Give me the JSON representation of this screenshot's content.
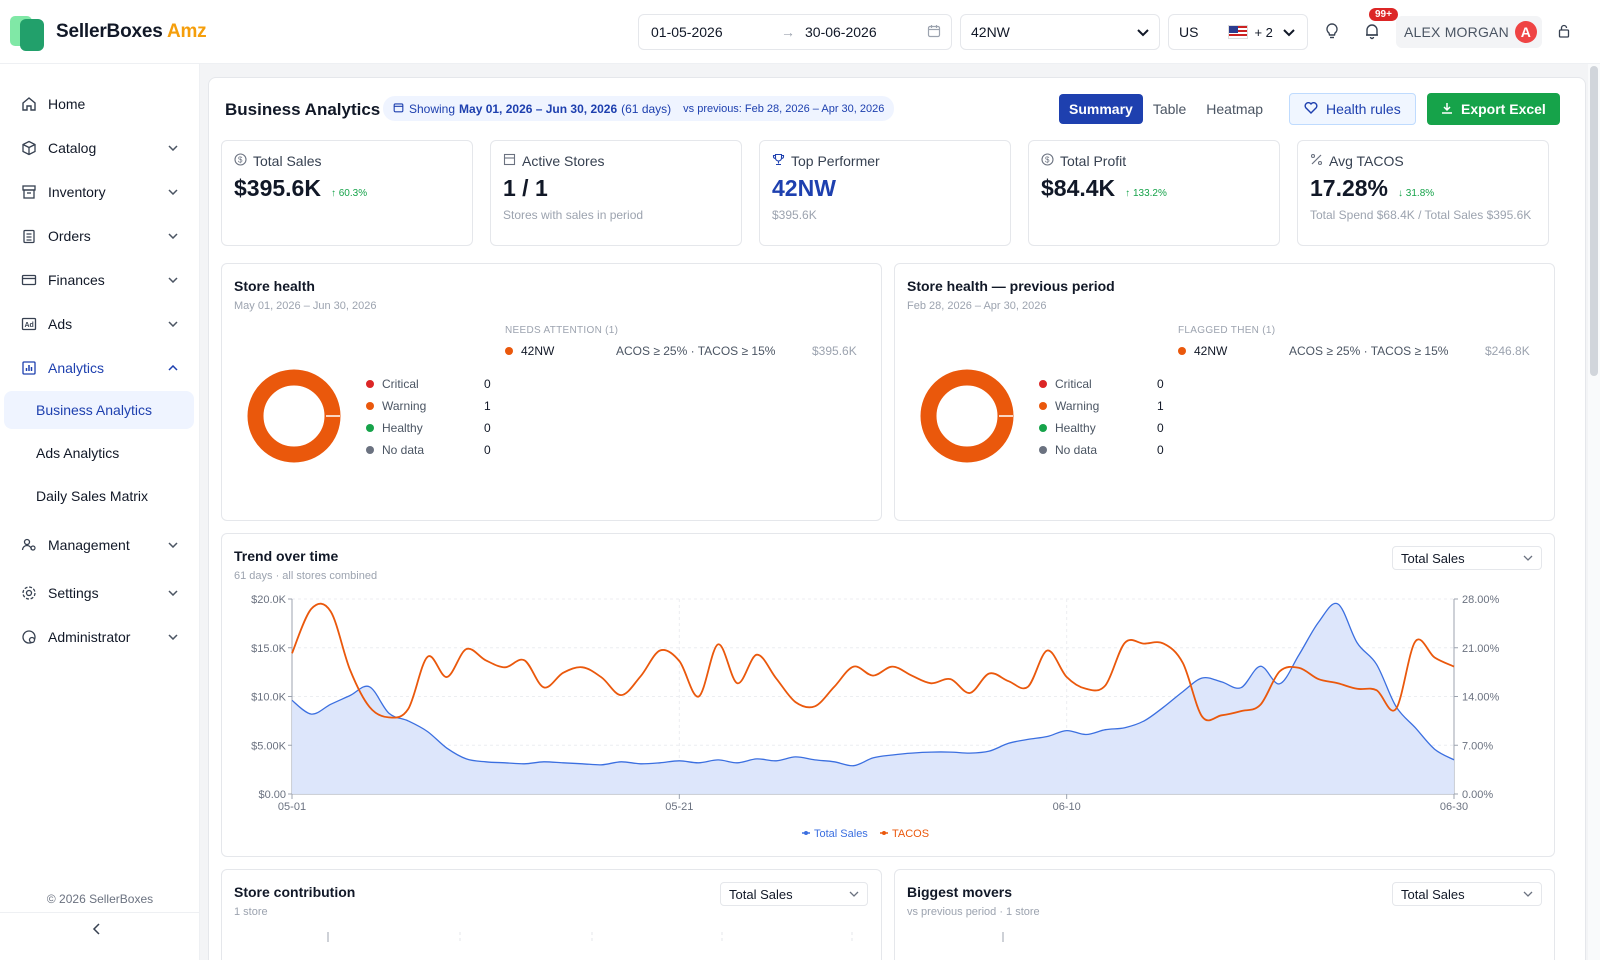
{
  "brand": {
    "name": "SellerBoxes",
    "suffix": " Amz"
  },
  "header": {
    "date_from": "01-05-2026",
    "date_to": "30-06-2026",
    "store": "42NW",
    "marketplace": "US",
    "marketplace_extra": "+ 2",
    "notif_count": "99+",
    "user_name": "ALEX MORGAN",
    "user_initial": "A"
  },
  "sidebar": {
    "items": [
      {
        "label": "Home",
        "icon": "home-icon"
      },
      {
        "label": "Catalog",
        "icon": "box-icon"
      },
      {
        "label": "Inventory",
        "icon": "archive-icon"
      },
      {
        "label": "Orders",
        "icon": "clipboard-icon"
      },
      {
        "label": "Finances",
        "icon": "card-icon"
      },
      {
        "label": "Ads",
        "icon": "ad-icon"
      },
      {
        "label": "Analytics",
        "icon": "bar-chart-icon"
      },
      {
        "label": "Management",
        "icon": "users-icon"
      },
      {
        "label": "Settings",
        "icon": "gear-icon"
      },
      {
        "label": "Administrator",
        "icon": "admin-icon"
      }
    ],
    "analytics_sub": [
      "Business Analytics",
      "Ads Analytics",
      "Daily Sales Matrix"
    ],
    "copyright": "© 2026 SellerBoxes",
    "collapse": "<"
  },
  "page": {
    "title": "Business Analytics",
    "showing_prefix": "Showing",
    "showing_range": "May 01, 2026 – Jun 30, 2026",
    "showing_days": "(61 days)",
    "vs_previous": "vs previous: Feb 28, 2026 – Apr 30, 2026",
    "views": [
      "Summary",
      "Table",
      "Heatmap"
    ],
    "active_view": "Summary",
    "health_rules": "Health rules",
    "export": "Export Excel"
  },
  "kpis": [
    {
      "label": "Total Sales",
      "value": "$395.6K",
      "change": "↑ 60.3%",
      "sub": ""
    },
    {
      "label": "Active Stores",
      "value": "1 / 1",
      "change": "",
      "sub": "Stores with sales in period"
    },
    {
      "label": "Top Performer",
      "value": "42NW",
      "change": "",
      "sub": "$395.6K"
    },
    {
      "label": "Total Profit",
      "value": "$84.4K",
      "change": "↑ 133.2%",
      "sub": ""
    },
    {
      "label": "Avg TACOS",
      "value": "17.28%",
      "change": "↓ 31.8%",
      "sub": "Total Spend $68.4K / Total Sales $395.6K"
    }
  ],
  "health": {
    "title": "Store health",
    "period": "May 01, 2026 – Jun 30, 2026",
    "legend": [
      {
        "label": "Critical",
        "count": "0",
        "color": "#dc2626"
      },
      {
        "label": "Warning",
        "count": "1",
        "color": "#ea580c"
      },
      {
        "label": "Healthy",
        "count": "0",
        "color": "#16a34a"
      },
      {
        "label": "No data",
        "count": "0",
        "color": "#6b7280"
      }
    ],
    "attention_title": "NEEDS ATTENTION (1)",
    "attention_store": "42NW",
    "attention_rule": "ACOS ≥ 25% · TACOS ≥ 15%",
    "attention_amount": "$395.6K"
  },
  "health_prev": {
    "title": "Store health — previous period",
    "period": "Feb 28, 2026 – Apr 30, 2026",
    "legend": [
      {
        "label": "Critical",
        "count": "0",
        "color": "#dc2626"
      },
      {
        "label": "Warning",
        "count": "1",
        "color": "#ea580c"
      },
      {
        "label": "Healthy",
        "count": "0",
        "color": "#16a34a"
      },
      {
        "label": "No data",
        "count": "0",
        "color": "#6b7280"
      }
    ],
    "attention_title": "FLAGGED THEN (1)",
    "attention_store": "42NW",
    "attention_rule": "ACOS ≥ 25% · TACOS ≥ 15%",
    "attention_amount": "$246.8K"
  },
  "trend": {
    "title": "Trend over time",
    "subtitle": "61 days · all stores combined",
    "metric": "Total Sales"
  },
  "chart_data": {
    "type": "area",
    "x": [
      "05-01",
      "05-02",
      "05-03",
      "05-04",
      "05-05",
      "05-06",
      "05-07",
      "05-08",
      "05-09",
      "05-10",
      "05-11",
      "05-12",
      "05-13",
      "05-14",
      "05-15",
      "05-16",
      "05-17",
      "05-18",
      "05-19",
      "05-20",
      "05-21",
      "05-22",
      "05-23",
      "05-24",
      "05-25",
      "05-26",
      "05-27",
      "05-28",
      "05-29",
      "05-30",
      "05-31",
      "06-01",
      "06-02",
      "06-03",
      "06-04",
      "06-05",
      "06-06",
      "06-07",
      "06-08",
      "06-09",
      "06-10",
      "06-11",
      "06-12",
      "06-13",
      "06-14",
      "06-15",
      "06-16",
      "06-17",
      "06-18",
      "06-19",
      "06-20",
      "06-21",
      "06-22",
      "06-23",
      "06-24",
      "06-25",
      "06-26",
      "06-27",
      "06-28",
      "06-29",
      "06-30"
    ],
    "xticks": [
      "05-01",
      "05-21",
      "06-10",
      "06-30"
    ],
    "series": [
      {
        "name": "Total Sales",
        "axis": "left",
        "color": "#3b6fe0",
        "values": [
          9600,
          8200,
          9200,
          10100,
          11000,
          8300,
          7500,
          6400,
          4700,
          3600,
          3300,
          3200,
          3100,
          3300,
          3200,
          3100,
          3000,
          3300,
          3100,
          3200,
          3400,
          3200,
          3500,
          3200,
          3600,
          3400,
          3800,
          3500,
          3300,
          2900,
          3700,
          4000,
          4200,
          4300,
          4300,
          4200,
          4400,
          5200,
          5600,
          5900,
          6500,
          6100,
          6600,
          6800,
          7500,
          8900,
          10500,
          11900,
          11500,
          10900,
          13100,
          11300,
          14300,
          17600,
          19500,
          15500,
          13300,
          9000,
          6800,
          4600,
          3500
        ]
      },
      {
        "name": "TACOS",
        "axis": "right",
        "color": "#ea580c",
        "values": [
          20.2,
          26.6,
          26.2,
          17.8,
          12.5,
          11.0,
          12.2,
          19.7,
          16.8,
          20.8,
          19.2,
          18.2,
          19.2,
          15.3,
          17.4,
          18.2,
          16.7,
          14.2,
          16.9,
          20.6,
          19.1,
          14.0,
          21.5,
          15.9,
          20.0,
          16.6,
          13.2,
          12.6,
          15.4,
          18.3,
          17.0,
          18.3,
          17.0,
          15.9,
          16.5,
          14.5,
          17.3,
          16.2,
          15.4,
          20.6,
          16.8,
          15.1,
          15.6,
          21.7,
          21.6,
          21.6,
          18.8,
          11.1,
          11.3,
          11.9,
          12.8,
          17.6,
          18.1,
          16.5,
          15.9,
          15.1,
          14.9,
          12.2,
          21.9,
          19.6,
          18.3
        ]
      }
    ],
    "ylim_left": [
      0,
      20000
    ],
    "yticks_left": [
      "$0.00",
      "$5.00K",
      "$10.0K",
      "$15.0K",
      "$20.0K"
    ],
    "ylim_right": [
      0,
      28
    ],
    "yticks_right": [
      "0.00%",
      "7.00%",
      "14.00%",
      "21.00%",
      "28.00%"
    ],
    "grid": true,
    "legend": "bottom"
  },
  "contribution": {
    "title": "Store contribution",
    "subtitle": "1 store",
    "metric": "Total Sales"
  },
  "movers": {
    "title": "Biggest movers",
    "subtitle": "vs previous period · 1 store",
    "metric": "Total Sales"
  }
}
